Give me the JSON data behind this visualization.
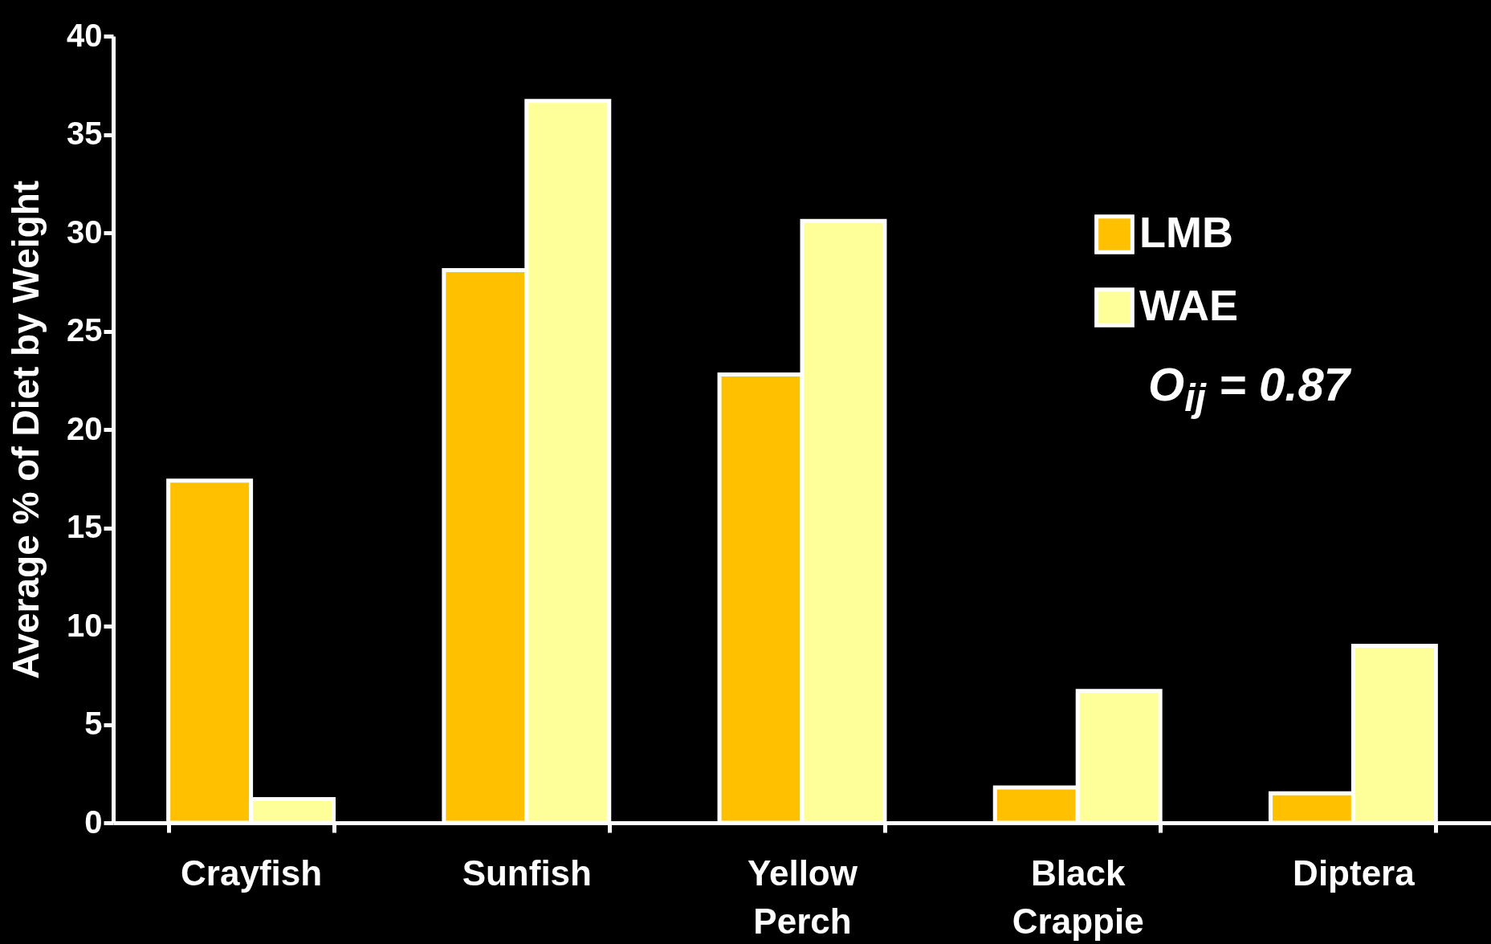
{
  "chart_data": {
    "type": "bar",
    "ylabel": "Average % of Diet by Weight",
    "categories": [
      "Crayfish",
      "Sunfish",
      "Yellow Perch",
      "Black Crappie",
      "Diptera"
    ],
    "series": [
      {
        "name": "LMB",
        "color": "#ffc000",
        "values": [
          17.4,
          28.1,
          22.8,
          1.8,
          1.5
        ]
      },
      {
        "name": "WAE",
        "color": "#ffff99",
        "values": [
          1.2,
          36.7,
          30.6,
          6.7,
          9.0
        ]
      }
    ],
    "ylim": [
      0,
      40
    ],
    "yticks": [
      0,
      5,
      10,
      15,
      20,
      25,
      30,
      35,
      40
    ],
    "grid": false,
    "legend": "top right",
    "annotations": [
      "O$_{ij}$ = 0.87"
    ]
  }
}
